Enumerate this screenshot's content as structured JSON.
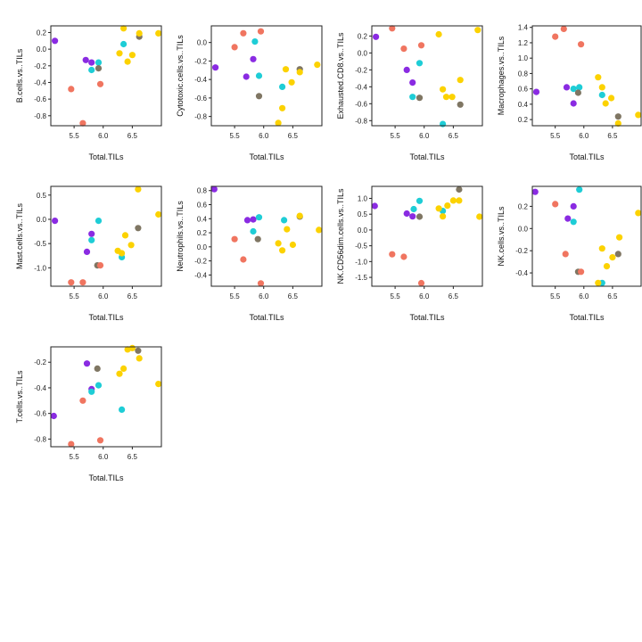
{
  "colors": {
    "purple": "#8a2be2",
    "salmon": "#f07560",
    "cyan": "#1ecdd6",
    "gray": "#7f7663",
    "gold": "#fcd200"
  },
  "chart_data": [
    {
      "type": "scatter",
      "xlabel": "Total.TILs",
      "ylabel": "B.cells.vs..TILs",
      "xlim": [
        5.1,
        7.0
      ],
      "ylim": [
        -0.92,
        0.28
      ],
      "xticks": [
        5.5,
        6.0,
        6.5
      ],
      "xtick_labels": [
        "5.5",
        "6.0",
        "6.5"
      ],
      "yticks": [
        -0.8,
        -0.6,
        -0.4,
        -0.2,
        0.0,
        0.2
      ],
      "ytick_labels": [
        "-0.8",
        "-0.6",
        "-0.4",
        "-0.2",
        "0.0",
        "0.2"
      ],
      "points": [
        {
          "x": 5.17,
          "y": 0.1,
          "c": "purple"
        },
        {
          "x": 5.7,
          "y": -0.13,
          "c": "purple"
        },
        {
          "x": 5.8,
          "y": -0.16,
          "c": "purple"
        },
        {
          "x": 5.8,
          "y": -0.25,
          "c": "cyan"
        },
        {
          "x": 5.92,
          "y": -0.16,
          "c": "cyan"
        },
        {
          "x": 5.92,
          "y": -0.23,
          "c": "gray"
        },
        {
          "x": 5.45,
          "y": -0.48,
          "c": "salmon"
        },
        {
          "x": 5.95,
          "y": -0.42,
          "c": "salmon"
        },
        {
          "x": 5.65,
          "y": -0.89,
          "c": "salmon"
        },
        {
          "x": 6.35,
          "y": 0.06,
          "c": "cyan"
        },
        {
          "x": 6.35,
          "y": 0.25,
          "c": "gold"
        },
        {
          "x": 6.28,
          "y": -0.05,
          "c": "gold"
        },
        {
          "x": 6.42,
          "y": -0.15,
          "c": "gold"
        },
        {
          "x": 6.5,
          "y": -0.07,
          "c": "gold"
        },
        {
          "x": 6.62,
          "y": 0.15,
          "c": "gray"
        },
        {
          "x": 6.62,
          "y": 0.19,
          "c": "gold"
        },
        {
          "x": 6.95,
          "y": 0.19,
          "c": "gold"
        }
      ]
    },
    {
      "type": "scatter",
      "xlabel": "Total.TILs",
      "ylabel": "Cytotoxic.cells.vs..TILs",
      "xlim": [
        5.1,
        7.0
      ],
      "ylim": [
        -0.9,
        0.18
      ],
      "xticks": [
        5.5,
        6.0,
        6.5
      ],
      "xtick_labels": [
        "5.5",
        "6.0",
        "6.5"
      ],
      "yticks": [
        -0.8,
        -0.6,
        -0.4,
        -0.2,
        0.0
      ],
      "ytick_labels": [
        "-0.8",
        "-0.6",
        "-0.4",
        "-0.2",
        "0.0"
      ],
      "points": [
        {
          "x": 5.17,
          "y": -0.27,
          "c": "purple"
        },
        {
          "x": 5.7,
          "y": -0.37,
          "c": "purple"
        },
        {
          "x": 5.82,
          "y": -0.18,
          "c": "purple"
        },
        {
          "x": 5.85,
          "y": 0.01,
          "c": "cyan"
        },
        {
          "x": 5.92,
          "y": -0.36,
          "c": "cyan"
        },
        {
          "x": 5.92,
          "y": -0.58,
          "c": "gray"
        },
        {
          "x": 5.5,
          "y": -0.05,
          "c": "salmon"
        },
        {
          "x": 5.65,
          "y": 0.1,
          "c": "salmon"
        },
        {
          "x": 5.95,
          "y": 0.12,
          "c": "salmon"
        },
        {
          "x": 6.32,
          "y": -0.48,
          "c": "cyan"
        },
        {
          "x": 6.25,
          "y": -0.87,
          "c": "gold"
        },
        {
          "x": 6.32,
          "y": -0.71,
          "c": "gold"
        },
        {
          "x": 6.38,
          "y": -0.29,
          "c": "gold"
        },
        {
          "x": 6.48,
          "y": -0.43,
          "c": "gold"
        },
        {
          "x": 6.62,
          "y": -0.29,
          "c": "gray"
        },
        {
          "x": 6.62,
          "y": -0.32,
          "c": "gold"
        },
        {
          "x": 6.92,
          "y": -0.24,
          "c": "gold"
        }
      ]
    },
    {
      "type": "scatter",
      "xlabel": "Total.TILs",
      "ylabel": "Exhausted.CD8.vs..TILs",
      "xlim": [
        5.1,
        7.0
      ],
      "ylim": [
        -0.86,
        0.32
      ],
      "xticks": [
        5.5,
        6.0,
        6.5
      ],
      "xtick_labels": [
        "5.5",
        "6.0",
        "6.5"
      ],
      "yticks": [
        -0.8,
        -0.6,
        -0.4,
        -0.2,
        0.0,
        0.2
      ],
      "ytick_labels": [
        "-0.8",
        "-0.6",
        "-0.4",
        "-0.2",
        "0.0",
        "0.2"
      ],
      "points": [
        {
          "x": 5.17,
          "y": 0.19,
          "c": "purple"
        },
        {
          "x": 5.7,
          "y": -0.2,
          "c": "purple"
        },
        {
          "x": 5.8,
          "y": -0.35,
          "c": "purple"
        },
        {
          "x": 5.8,
          "y": -0.52,
          "c": "cyan"
        },
        {
          "x": 5.92,
          "y": -0.12,
          "c": "cyan"
        },
        {
          "x": 5.92,
          "y": -0.53,
          "c": "gray"
        },
        {
          "x": 5.45,
          "y": 0.29,
          "c": "salmon"
        },
        {
          "x": 5.65,
          "y": 0.05,
          "c": "salmon"
        },
        {
          "x": 5.95,
          "y": 0.09,
          "c": "salmon"
        },
        {
          "x": 6.32,
          "y": -0.84,
          "c": "cyan"
        },
        {
          "x": 6.25,
          "y": 0.22,
          "c": "gold"
        },
        {
          "x": 6.32,
          "y": -0.43,
          "c": "gold"
        },
        {
          "x": 6.38,
          "y": -0.52,
          "c": "gold"
        },
        {
          "x": 6.48,
          "y": -0.52,
          "c": "gold"
        },
        {
          "x": 6.62,
          "y": -0.61,
          "c": "gray"
        },
        {
          "x": 6.62,
          "y": -0.32,
          "c": "gold"
        },
        {
          "x": 6.92,
          "y": 0.27,
          "c": "gold"
        }
      ]
    },
    {
      "type": "scatter",
      "xlabel": "Total.TILs",
      "ylabel": "Macrophages.vs..TILs",
      "xlim": [
        5.1,
        7.0
      ],
      "ylim": [
        0.12,
        1.42
      ],
      "xticks": [
        5.5,
        6.0,
        6.5
      ],
      "xtick_labels": [
        "5.5",
        "6.0",
        "6.5"
      ],
      "yticks": [
        0.2,
        0.4,
        0.6,
        0.8,
        1.0,
        1.2,
        1.4
      ],
      "ytick_labels": [
        "0.2",
        "0.4",
        "0.6",
        "0.8",
        "1.0",
        "1.2",
        "1.4"
      ],
      "points": [
        {
          "x": 5.17,
          "y": 0.56,
          "c": "purple"
        },
        {
          "x": 5.7,
          "y": 0.62,
          "c": "purple"
        },
        {
          "x": 5.82,
          "y": 0.41,
          "c": "purple"
        },
        {
          "x": 5.82,
          "y": 0.6,
          "c": "cyan"
        },
        {
          "x": 5.92,
          "y": 0.62,
          "c": "cyan"
        },
        {
          "x": 5.9,
          "y": 0.55,
          "c": "gray"
        },
        {
          "x": 5.5,
          "y": 1.28,
          "c": "salmon"
        },
        {
          "x": 5.65,
          "y": 1.38,
          "c": "salmon"
        },
        {
          "x": 5.95,
          "y": 1.18,
          "c": "salmon"
        },
        {
          "x": 6.32,
          "y": 0.52,
          "c": "cyan"
        },
        {
          "x": 6.25,
          "y": 0.75,
          "c": "gold"
        },
        {
          "x": 6.32,
          "y": 0.62,
          "c": "gold"
        },
        {
          "x": 6.38,
          "y": 0.41,
          "c": "gold"
        },
        {
          "x": 6.48,
          "y": 0.48,
          "c": "gold"
        },
        {
          "x": 6.6,
          "y": 0.24,
          "c": "gray"
        },
        {
          "x": 6.6,
          "y": 0.15,
          "c": "gold"
        },
        {
          "x": 6.95,
          "y": 0.26,
          "c": "gold"
        }
      ]
    },
    {
      "type": "scatter",
      "xlabel": "Total.TILs",
      "ylabel": "Mast.cells.vs..TILs",
      "xlim": [
        5.1,
        7.0
      ],
      "ylim": [
        -1.38,
        0.68
      ],
      "xticks": [
        5.5,
        6.0,
        6.5
      ],
      "xtick_labels": [
        "5.5",
        "6.0",
        "6.5"
      ],
      "yticks": [
        -1.0,
        -0.5,
        0.0,
        0.5
      ],
      "ytick_labels": [
        "-1.0",
        "-0.5",
        "0.0",
        "0.5"
      ],
      "points": [
        {
          "x": 5.17,
          "y": -0.03,
          "c": "purple"
        },
        {
          "x": 5.72,
          "y": -0.67,
          "c": "purple"
        },
        {
          "x": 5.8,
          "y": -0.3,
          "c": "purple"
        },
        {
          "x": 5.8,
          "y": -0.43,
          "c": "cyan"
        },
        {
          "x": 5.92,
          "y": -0.03,
          "c": "cyan"
        },
        {
          "x": 5.9,
          "y": -0.95,
          "c": "gray"
        },
        {
          "x": 5.45,
          "y": -1.3,
          "c": "salmon"
        },
        {
          "x": 5.65,
          "y": -1.3,
          "c": "salmon"
        },
        {
          "x": 5.95,
          "y": -0.95,
          "c": "salmon"
        },
        {
          "x": 6.32,
          "y": -0.78,
          "c": "cyan"
        },
        {
          "x": 6.25,
          "y": -0.65,
          "c": "gold"
        },
        {
          "x": 6.32,
          "y": -0.7,
          "c": "gold"
        },
        {
          "x": 6.38,
          "y": -0.33,
          "c": "gold"
        },
        {
          "x": 6.48,
          "y": -0.53,
          "c": "gold"
        },
        {
          "x": 6.6,
          "y": -0.18,
          "c": "gray"
        },
        {
          "x": 6.6,
          "y": 0.62,
          "c": "gold"
        },
        {
          "x": 6.95,
          "y": 0.1,
          "c": "gold"
        }
      ]
    },
    {
      "type": "scatter",
      "xlabel": "Total.TILs",
      "ylabel": "Neutrophils.vs..TILs",
      "xlim": [
        5.1,
        7.0
      ],
      "ylim": [
        -0.56,
        0.86
      ],
      "xticks": [
        5.5,
        6.0,
        6.5
      ],
      "xtick_labels": [
        "5.5",
        "6.0",
        "6.5"
      ],
      "yticks": [
        -0.4,
        -0.2,
        0.0,
        0.2,
        0.4,
        0.6,
        0.8
      ],
      "ytick_labels": [
        "-0.4",
        "-0.2",
        "0.0",
        "0.2",
        "0.4",
        "0.6",
        "0.8"
      ],
      "points": [
        {
          "x": 5.15,
          "y": 0.82,
          "c": "purple"
        },
        {
          "x": 5.72,
          "y": 0.38,
          "c": "purple"
        },
        {
          "x": 5.82,
          "y": 0.39,
          "c": "purple"
        },
        {
          "x": 5.82,
          "y": 0.22,
          "c": "cyan"
        },
        {
          "x": 5.92,
          "y": 0.42,
          "c": "cyan"
        },
        {
          "x": 5.9,
          "y": 0.11,
          "c": "gray"
        },
        {
          "x": 5.5,
          "y": 0.11,
          "c": "salmon"
        },
        {
          "x": 5.65,
          "y": -0.18,
          "c": "salmon"
        },
        {
          "x": 5.95,
          "y": -0.52,
          "c": "salmon"
        },
        {
          "x": 6.35,
          "y": 0.38,
          "c": "cyan"
        },
        {
          "x": 6.25,
          "y": 0.05,
          "c": "gold"
        },
        {
          "x": 6.32,
          "y": -0.05,
          "c": "gold"
        },
        {
          "x": 6.4,
          "y": 0.25,
          "c": "gold"
        },
        {
          "x": 6.5,
          "y": 0.03,
          "c": "gold"
        },
        {
          "x": 6.62,
          "y": 0.43,
          "c": "gray"
        },
        {
          "x": 6.62,
          "y": 0.44,
          "c": "gold"
        },
        {
          "x": 6.95,
          "y": 0.24,
          "c": "gold"
        }
      ]
    },
    {
      "type": "scatter",
      "xlabel": "Total.TILs",
      "ylabel": "NK.CD56dim.cells.vs..TILs",
      "xlim": [
        5.1,
        7.0
      ],
      "ylim": [
        -1.78,
        1.38
      ],
      "xticks": [
        5.5,
        6.0,
        6.5
      ],
      "xtick_labels": [
        "5.5",
        "6.0",
        "6.5"
      ],
      "yticks": [
        -1.5,
        -1.0,
        -0.5,
        0.0,
        0.5,
        1.0
      ],
      "ytick_labels": [
        "-1.5",
        "-1.0",
        "-0.5",
        "0.0",
        "0.5",
        "1.0"
      ],
      "points": [
        {
          "x": 5.15,
          "y": 0.76,
          "c": "purple"
        },
        {
          "x": 5.7,
          "y": 0.52,
          "c": "purple"
        },
        {
          "x": 5.8,
          "y": 0.43,
          "c": "purple"
        },
        {
          "x": 5.82,
          "y": 0.66,
          "c": "cyan"
        },
        {
          "x": 5.92,
          "y": 0.92,
          "c": "cyan"
        },
        {
          "x": 5.92,
          "y": 0.42,
          "c": "gray"
        },
        {
          "x": 5.45,
          "y": -0.77,
          "c": "salmon"
        },
        {
          "x": 5.65,
          "y": -0.85,
          "c": "salmon"
        },
        {
          "x": 5.95,
          "y": -1.68,
          "c": "salmon"
        },
        {
          "x": 6.32,
          "y": 0.6,
          "c": "cyan"
        },
        {
          "x": 6.25,
          "y": 0.68,
          "c": "gold"
        },
        {
          "x": 6.32,
          "y": 0.43,
          "c": "gold"
        },
        {
          "x": 6.4,
          "y": 0.77,
          "c": "gold"
        },
        {
          "x": 6.5,
          "y": 0.93,
          "c": "gold"
        },
        {
          "x": 6.6,
          "y": 1.28,
          "c": "gray"
        },
        {
          "x": 6.6,
          "y": 0.93,
          "c": "gold"
        },
        {
          "x": 6.95,
          "y": 0.42,
          "c": "gold"
        }
      ]
    },
    {
      "type": "scatter",
      "xlabel": "Total.TILs",
      "ylabel": "NK.cells.vs..TILs",
      "xlim": [
        5.1,
        7.0
      ],
      "ylim": [
        -0.52,
        0.38
      ],
      "xticks": [
        5.5,
        6.0,
        6.5
      ],
      "xtick_labels": [
        "5.5",
        "6.0",
        "6.5"
      ],
      "yticks": [
        -0.4,
        -0.2,
        0.0,
        0.2
      ],
      "ytick_labels": [
        "-0.4",
        "-0.2",
        "0.0",
        "0.2"
      ],
      "points": [
        {
          "x": 5.15,
          "y": 0.33,
          "c": "purple"
        },
        {
          "x": 5.72,
          "y": 0.09,
          "c": "purple"
        },
        {
          "x": 5.82,
          "y": 0.2,
          "c": "purple"
        },
        {
          "x": 5.82,
          "y": 0.06,
          "c": "cyan"
        },
        {
          "x": 5.92,
          "y": 0.35,
          "c": "cyan"
        },
        {
          "x": 5.9,
          "y": -0.39,
          "c": "gray"
        },
        {
          "x": 5.5,
          "y": 0.22,
          "c": "salmon"
        },
        {
          "x": 5.68,
          "y": -0.23,
          "c": "salmon"
        },
        {
          "x": 5.95,
          "y": -0.39,
          "c": "salmon"
        },
        {
          "x": 6.32,
          "y": -0.49,
          "c": "cyan"
        },
        {
          "x": 6.25,
          "y": -0.49,
          "c": "gold"
        },
        {
          "x": 6.32,
          "y": -0.18,
          "c": "gold"
        },
        {
          "x": 6.4,
          "y": -0.34,
          "c": "gold"
        },
        {
          "x": 6.5,
          "y": -0.26,
          "c": "gold"
        },
        {
          "x": 6.6,
          "y": -0.23,
          "c": "gray"
        },
        {
          "x": 6.62,
          "y": -0.08,
          "c": "gold"
        },
        {
          "x": 6.95,
          "y": 0.14,
          "c": "gold"
        }
      ]
    },
    {
      "type": "scatter",
      "xlabel": "Total.TILs",
      "ylabel": "T.cells.vs..TILs",
      "xlim": [
        5.1,
        7.0
      ],
      "ylim": [
        -0.86,
        -0.08
      ],
      "xticks": [
        5.5,
        6.0,
        6.5
      ],
      "xtick_labels": [
        "5.5",
        "6.0",
        "6.5"
      ],
      "yticks": [
        -0.8,
        -0.6,
        -0.4,
        -0.2
      ],
      "ytick_labels": [
        "-0.8",
        "-0.6",
        "-0.4",
        "-0.2"
      ],
      "points": [
        {
          "x": 5.15,
          "y": -0.62,
          "c": "purple"
        },
        {
          "x": 5.72,
          "y": -0.21,
          "c": "purple"
        },
        {
          "x": 5.8,
          "y": -0.41,
          "c": "purple"
        },
        {
          "x": 5.8,
          "y": -0.43,
          "c": "cyan"
        },
        {
          "x": 5.92,
          "y": -0.38,
          "c": "cyan"
        },
        {
          "x": 5.9,
          "y": -0.25,
          "c": "gray"
        },
        {
          "x": 5.45,
          "y": -0.84,
          "c": "salmon"
        },
        {
          "x": 5.65,
          "y": -0.5,
          "c": "salmon"
        },
        {
          "x": 5.95,
          "y": -0.81,
          "c": "salmon"
        },
        {
          "x": 6.32,
          "y": -0.57,
          "c": "cyan"
        },
        {
          "x": 6.28,
          "y": -0.29,
          "c": "gold"
        },
        {
          "x": 6.35,
          "y": -0.25,
          "c": "gold"
        },
        {
          "x": 6.42,
          "y": -0.1,
          "c": "gold"
        },
        {
          "x": 6.5,
          "y": -0.09,
          "c": "gold"
        },
        {
          "x": 6.6,
          "y": -0.11,
          "c": "gray"
        },
        {
          "x": 6.62,
          "y": -0.17,
          "c": "gold"
        },
        {
          "x": 6.95,
          "y": -0.37,
          "c": "gold"
        }
      ]
    }
  ]
}
